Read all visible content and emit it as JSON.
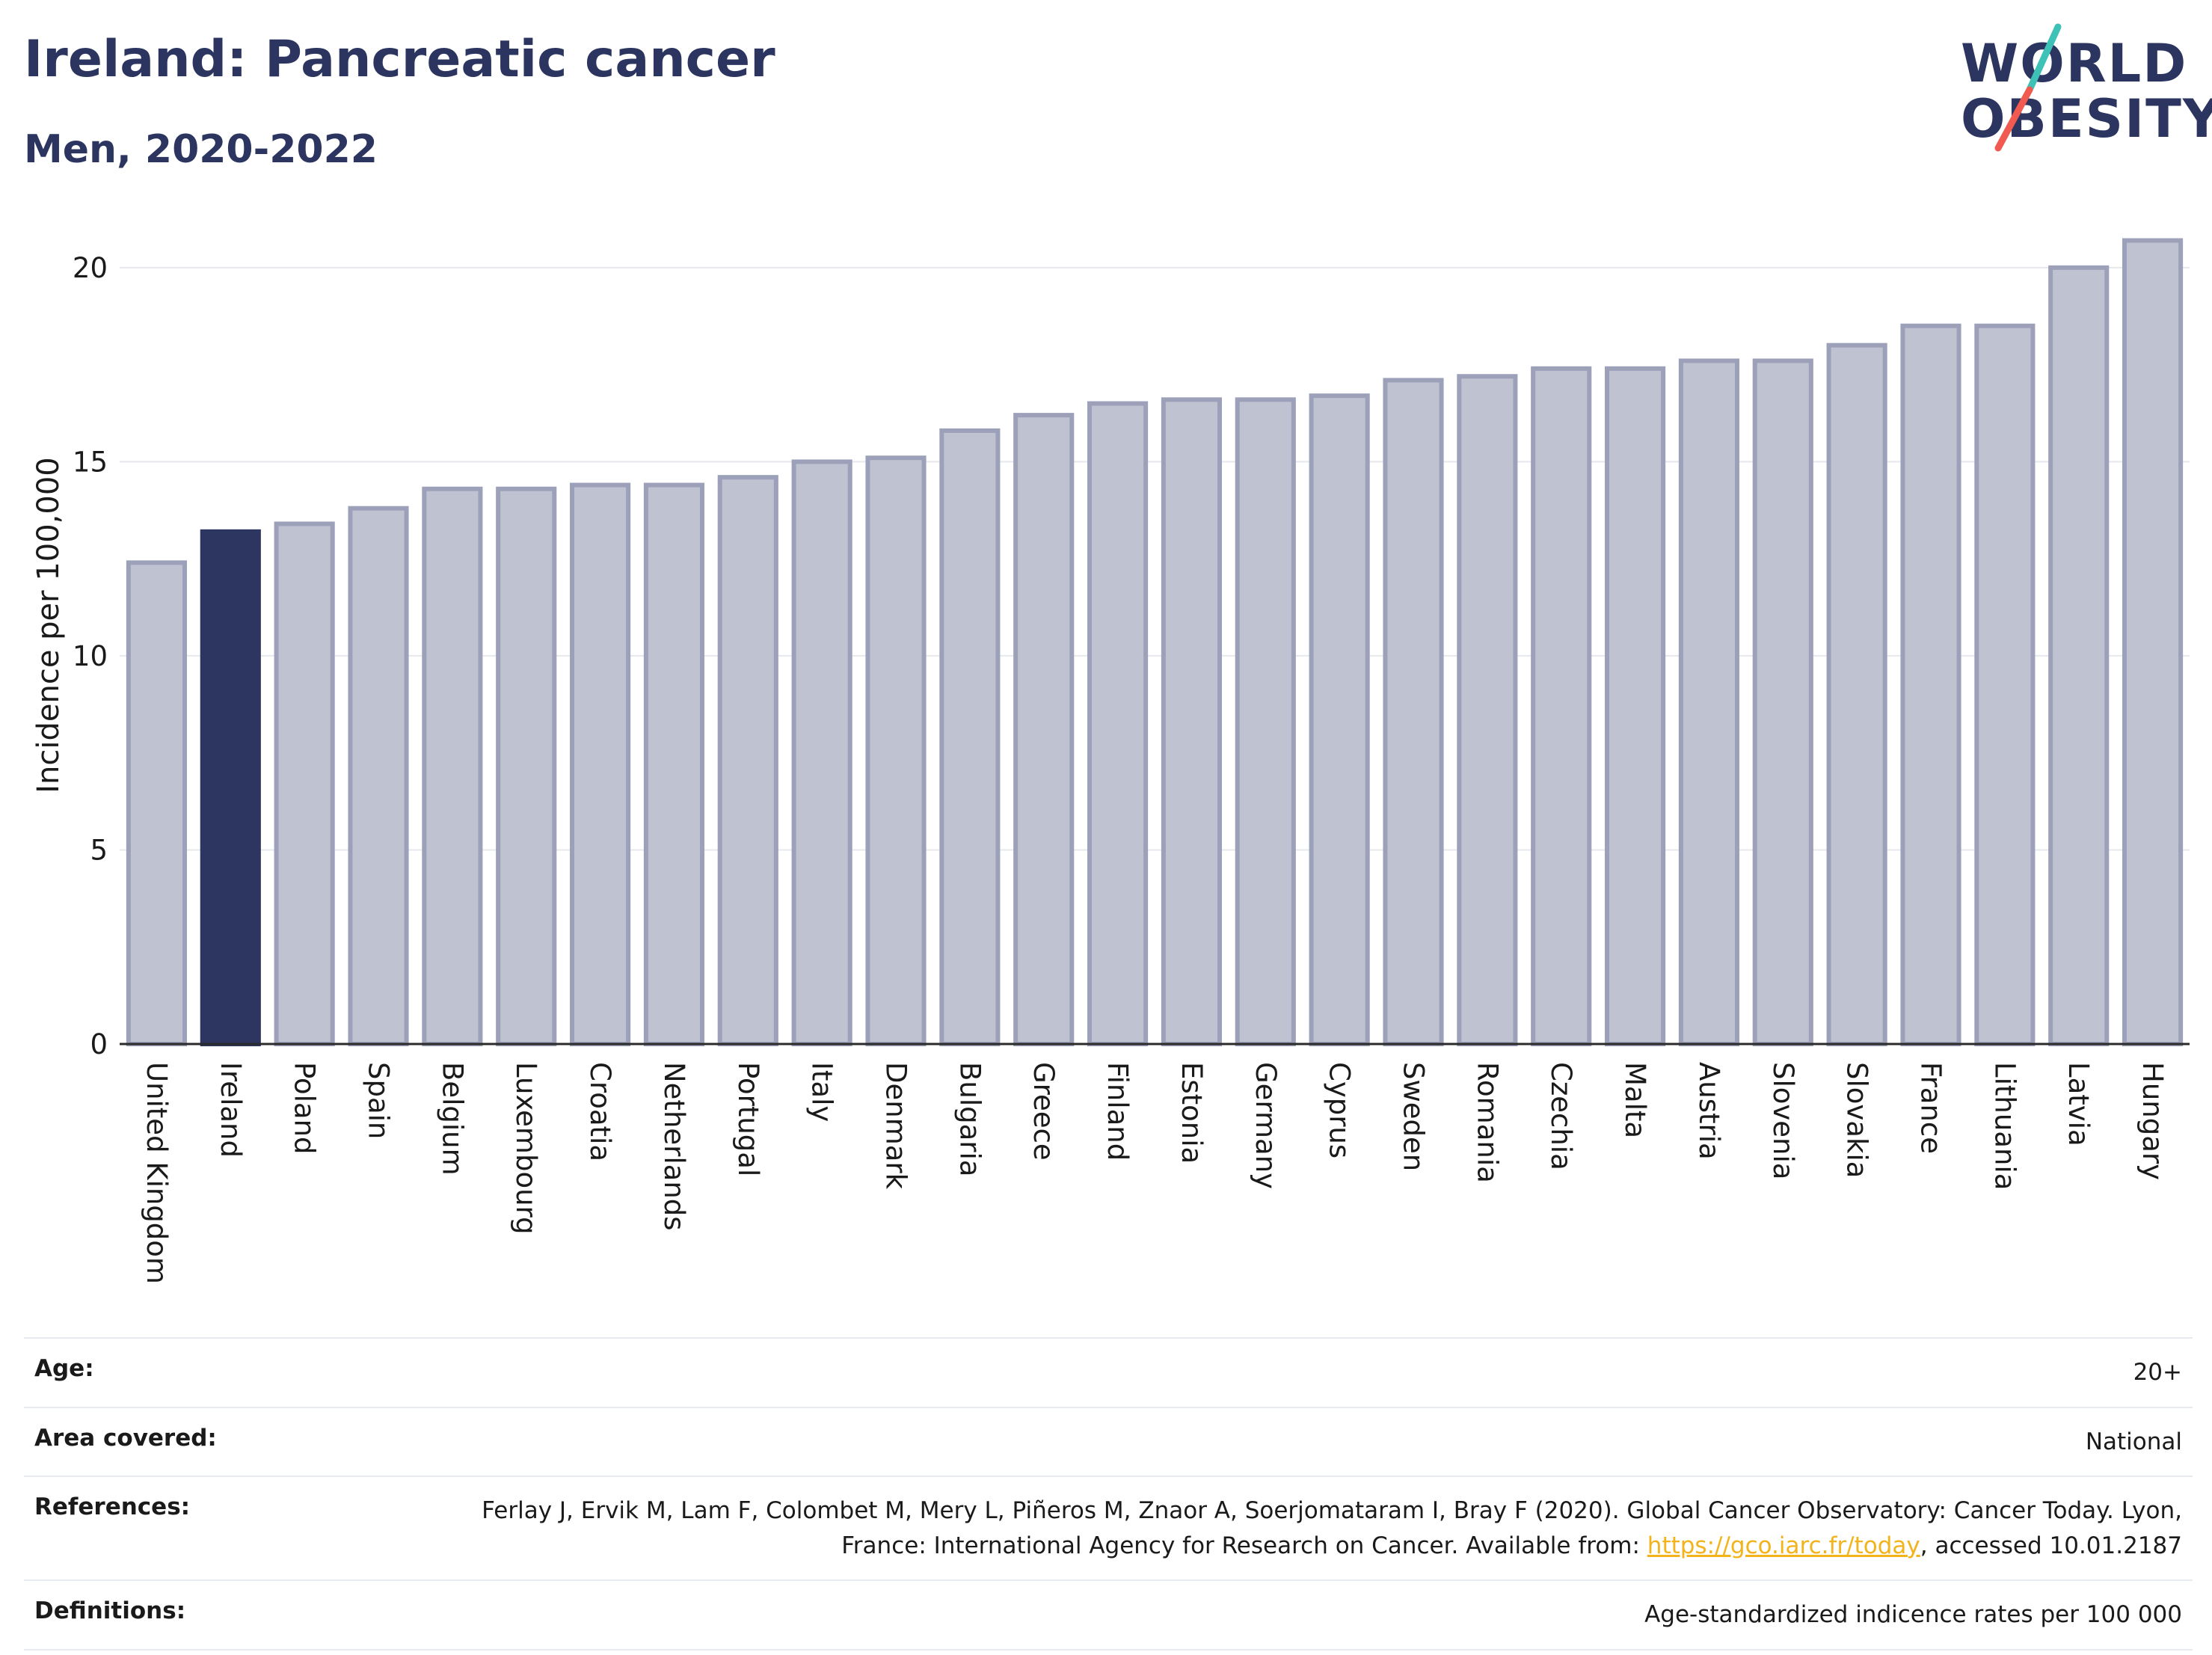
{
  "header": {
    "title": "Ireland: Pancreatic cancer",
    "subtitle": "Men, 2020-2022"
  },
  "logo": {
    "line1": "WORLD",
    "line2": "OBESITY",
    "colors": {
      "text": "#2b3560",
      "slash_top": "#3ec1b7",
      "slash_bottom": "#f05a50"
    }
  },
  "colors": {
    "highlight_bar": "#2c3660",
    "other_bar": "#bfc2d0",
    "other_bar_stroke": "#9ca1b9",
    "axis": "#2b2b2b",
    "grid": "#e6e8ee"
  },
  "chart_data": {
    "type": "bar",
    "title": "",
    "xlabel": "",
    "ylabel": "Incidence per 100,000",
    "ylim": [
      0,
      21.5
    ],
    "yticks": [
      0,
      5,
      10,
      15,
      20
    ],
    "grid": true,
    "highlight": "Ireland",
    "categories": [
      "United Kingdom",
      "Ireland",
      "Poland",
      "Spain",
      "Belgium",
      "Luxembourg",
      "Croatia",
      "Netherlands",
      "Portugal",
      "Italy",
      "Denmark",
      "Bulgaria",
      "Greece",
      "Finland",
      "Estonia",
      "Germany",
      "Cyprus",
      "Sweden",
      "Romania",
      "Czechia",
      "Malta",
      "Austria",
      "Slovenia",
      "Slovakia",
      "France",
      "Lithuania",
      "Latvia",
      "Hungary"
    ],
    "values": [
      12.4,
      13.2,
      13.4,
      13.8,
      14.3,
      14.3,
      14.4,
      14.4,
      14.6,
      15.0,
      15.1,
      15.8,
      16.2,
      16.5,
      16.6,
      16.6,
      16.7,
      17.1,
      17.2,
      17.4,
      17.4,
      17.6,
      17.6,
      18.0,
      18.5,
      18.5,
      20.0,
      20.7
    ]
  },
  "meta": [
    {
      "label": "Age:",
      "value": "20+"
    },
    {
      "label": "Area covered:",
      "value": "National"
    },
    {
      "label": "References:",
      "value": "Ferlay J, Ervik M, Lam F, Colombet M, Mery L, Piñeros M, Znaor A, Soerjomataram I, Bray F (2020). Global Cancer Observatory: Cancer Today. Lyon, France: International Agency for Research on Cancer. Available from: ",
      "link": "https://gco.iarc.fr/today",
      "suffix": ", accessed 10.01.2187"
    },
    {
      "label": "Definitions:",
      "value": "Age-standardized indicence rates per 100 000"
    }
  ]
}
